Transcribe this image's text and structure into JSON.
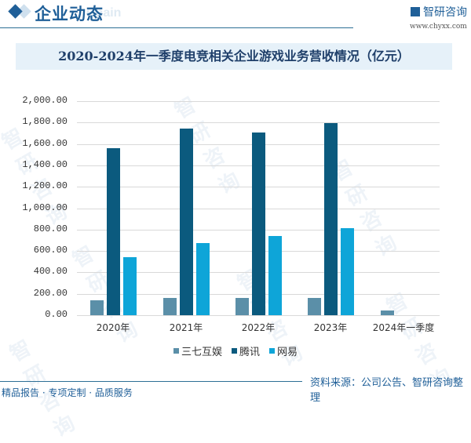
{
  "header": {
    "section_title": "企业动态",
    "ghost_text": "Chain",
    "brand_name": "智研咨询",
    "brand_url": "www.chyxx.com"
  },
  "chart_data": {
    "type": "bar",
    "title": "2020-2024年一季度电竞相关企业游戏业务营收情况（亿元）",
    "xlabel": "",
    "ylabel": "",
    "ylim": [
      0,
      2000
    ],
    "yticks": [
      "2,000.00",
      "1,800.00",
      "1,600.00",
      "1,400.00",
      "1,200.00",
      "1,000.00",
      "800.00",
      "600.00",
      "400.00",
      "200.00",
      "0.00"
    ],
    "grid": true,
    "legend_position": "bottom",
    "categories": [
      "2020年",
      "2021年",
      "2022年",
      "2023年",
      "2024年一季度"
    ],
    "series": [
      {
        "name": "三七互娱",
        "color": "#5b8fa8",
        "values": [
          141,
          163,
          163,
          163,
          46
        ]
      },
      {
        "name": "腾讯",
        "color": "#0b5a7e",
        "values": [
          1558,
          1744,
          1707,
          1795,
          null
        ]
      },
      {
        "name": "网易",
        "color": "#0ea5d8",
        "values": [
          544,
          676,
          742,
          813,
          null
        ]
      }
    ]
  },
  "footer": {
    "left_text": "精品报告 · 专项定制 · 品质服务",
    "source_text": "资料来源：公司公告、智研咨询整理"
  },
  "watermark": "智研咨询"
}
